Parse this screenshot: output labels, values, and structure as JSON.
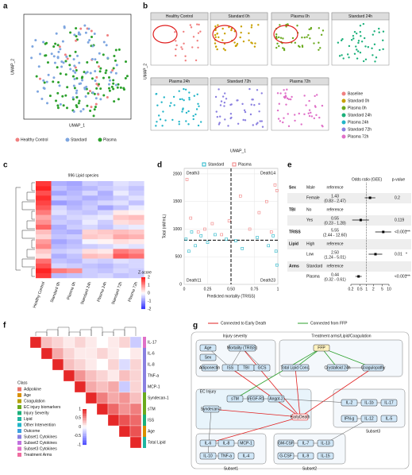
{
  "a": {
    "label": "a",
    "x_label": "UMAP_1",
    "y_label": "UMAP_2",
    "legend": [
      {
        "name": "Healthy Control",
        "color": "#f08080"
      },
      {
        "name": "Standard",
        "color": "#7ea6e0"
      },
      {
        "name": "Plasma",
        "color": "#2ca02c"
      }
    ]
  },
  "b": {
    "label": "b",
    "x_label": "UMAP_1",
    "y_label": "UMAP_2",
    "panels": [
      "Healthy Control",
      "Standard 0h",
      "Plasma 0h",
      "Standard 24h",
      "Plasma 24h",
      "Standard 72h",
      "Plasma 72h"
    ],
    "legend": [
      {
        "name": "Baseline",
        "color": "#f08080"
      },
      {
        "name": "Standard 0h",
        "color": "#c8a000"
      },
      {
        "name": "Plasma 0h",
        "color": "#6aaa1e"
      },
      {
        "name": "Standard 24h",
        "color": "#1ab07a"
      },
      {
        "name": "Plasma 24h",
        "color": "#22b5c8"
      },
      {
        "name": "Standard 72h",
        "color": "#8a7fe0"
      },
      {
        "name": "Plasma 72h",
        "color": "#e070c8"
      }
    ]
  },
  "c": {
    "label": "c",
    "title": "996 Lipid species",
    "columns": [
      "Healthy Control",
      "Standard 0h",
      "Plasma 0h",
      "Standard 24h",
      "Plasma 24h",
      "Standard 72h",
      "Plasma 72h"
    ],
    "values": [
      [
        1.8,
        -0.8,
        -0.9,
        -0.5,
        -0.6,
        -0.3,
        -0.4
      ],
      [
        2.0,
        -0.6,
        -0.8,
        -0.7,
        -0.5,
        -0.4,
        -0.6
      ],
      [
        1.6,
        -0.9,
        -0.7,
        -0.4,
        -0.8,
        -0.2,
        -0.5
      ],
      [
        1.9,
        -0.5,
        -0.6,
        -0.8,
        -0.7,
        -0.5,
        -0.3
      ],
      [
        1.7,
        -1.0,
        -0.8,
        -0.6,
        -0.4,
        -0.3,
        -0.6
      ],
      [
        1.5,
        -0.4,
        -0.7,
        -0.5,
        -0.9,
        -0.6,
        -0.2
      ],
      [
        1.2,
        -0.3,
        -0.5,
        -0.6,
        -0.4,
        0.2,
        0.1
      ],
      [
        0.8,
        -0.6,
        -0.4,
        -0.3,
        -0.2,
        0.5,
        0.6
      ],
      [
        1.0,
        -0.5,
        -0.6,
        -0.2,
        -0.5,
        0.3,
        0.4
      ],
      [
        1.4,
        -0.8,
        -0.5,
        -0.4,
        -0.6,
        -0.3,
        -0.2
      ],
      [
        0.6,
        -0.7,
        -0.8,
        0.4,
        0.5,
        0.6,
        0.5
      ],
      [
        0.4,
        -0.6,
        -0.5,
        0.5,
        0.4,
        0.8,
        0.7
      ],
      [
        0.9,
        -0.9,
        -0.7,
        -0.1,
        0.1,
        0.3,
        0.2
      ],
      [
        1.1,
        -0.7,
        -0.6,
        -0.5,
        -0.4,
        -0.2,
        -0.3
      ],
      [
        0.5,
        -0.5,
        -0.4,
        0.3,
        0.2,
        1.2,
        1.0
      ],
      [
        0.3,
        -0.8,
        -0.6,
        0.6,
        0.5,
        1.5,
        1.3
      ],
      [
        1.3,
        -0.6,
        -0.7,
        -0.4,
        -0.5,
        -0.3,
        -0.4
      ],
      [
        1.6,
        -0.4,
        -0.5,
        -0.6,
        -0.7,
        -0.5,
        -0.4
      ],
      [
        2.0,
        1.2,
        1.0,
        -0.5,
        -0.6,
        -0.4,
        -0.5
      ],
      [
        1.8,
        -0.7,
        -0.6,
        -0.5,
        -0.4,
        -0.6,
        -0.5
      ]
    ],
    "legend_title": "Z-score",
    "legend_ticks": [
      2,
      1,
      0,
      -1,
      -2
    ]
  },
  "d": {
    "label": "d",
    "type": "scatter",
    "x_label": "Predicted mortality (TRISS)",
    "y_label": "Total (nM/mL)",
    "series": [
      {
        "name": "Standard",
        "color": "#22b5c8",
        "x": [
          0.02,
          0.05,
          0.08,
          0.12,
          0.18,
          0.25,
          0.33,
          0.45,
          0.55,
          0.62,
          0.78,
          0.9,
          0.95,
          0.98,
          0.99
        ],
        "y": [
          820,
          600,
          950,
          700,
          880,
          760,
          900,
          820,
          790,
          650,
          850,
          700,
          880,
          600,
          350
        ]
      },
      {
        "name": "Plasma",
        "color": "#f08080",
        "x": [
          0.03,
          0.07,
          0.15,
          0.22,
          0.3,
          0.4,
          0.48,
          0.6,
          0.7,
          0.8,
          0.88,
          0.93,
          0.97,
          0.99
        ],
        "y": [
          1900,
          1200,
          950,
          1000,
          1100,
          900,
          1150,
          1600,
          1000,
          1300,
          1500,
          950,
          1800,
          1700
        ]
      }
    ],
    "xlim": [
      0,
      1
    ],
    "ylim": [
      0,
      2100
    ],
    "xticks": [
      0,
      0.25,
      {
        "value": 0.5,
        "label": "0.50"
      },
      0.75,
      1
    ],
    "yticks": [
      0,
      500,
      1000,
      1500,
      2000
    ],
    "reference_lines": {
      "x": 0.5,
      "y": 800
    },
    "annotations": [
      "Death3",
      "Death14",
      "Death11",
      "Death23"
    ]
  },
  "e": {
    "label": "e",
    "header": "Odds ratio (GEE)",
    "p_header": "p-value",
    "xlim": [
      0.2,
      10
    ],
    "xticks": [
      0.2,
      0.5,
      1,
      2,
      5,
      10
    ],
    "rows": [
      {
        "group": "Sex",
        "level": "Male",
        "estimate": "reference"
      },
      {
        "level": "Female",
        "or": 1.43,
        "ci": "(0.83 - 2.47)",
        "lo": 0.83,
        "hi": 2.47,
        "p": "0.2"
      },
      {
        "group": "TBI",
        "level": "No",
        "estimate": "reference"
      },
      {
        "level": "Yes",
        "or": 0.55,
        "ci": "(0.23 - 1.28)",
        "lo": 0.23,
        "hi": 1.28,
        "p": "0.119"
      },
      {
        "group": "TRISS",
        "or": 5.55,
        "ci": "(2.44 - 12.60)",
        "lo": 2.44,
        "hi": 12.6,
        "p": "<0.001",
        "sig": "***"
      },
      {
        "group": "Lipid",
        "level": "High",
        "estimate": "reference"
      },
      {
        "level": "Low",
        "or": 2.5,
        "or_label": "2.50",
        "ci": "(1.24 - 5.01)",
        "lo": 1.24,
        "hi": 5.01,
        "p": "0.01",
        "sig": "*"
      },
      {
        "group": "Arms",
        "level": "Standard",
        "estimate": "reference"
      },
      {
        "level": "Plasma",
        "or": 0.44,
        "ci": "(0.32 - 0.61)",
        "lo": 0.32,
        "hi": 0.61,
        "p": "<0.001",
        "sig": "***"
      }
    ]
  },
  "f": {
    "label": "f",
    "legend_title": "Class",
    "classes": [
      {
        "name": "Adipokine",
        "color": "#e8736c"
      },
      {
        "name": "Age",
        "color": "#d89000"
      },
      {
        "name": "Coagulation",
        "color": "#b5a000"
      },
      {
        "name": "EC injury biomarkers",
        "color": "#6aaa1e"
      },
      {
        "name": "Injury Severity",
        "color": "#1ab07a"
      },
      {
        "name": "Lipid",
        "color": "#1fb5a0"
      },
      {
        "name": "Other Intervention",
        "color": "#22b5c8"
      },
      {
        "name": "Outcome",
        "color": "#3ca0e0"
      },
      {
        "name": "Subset1 Cytokines",
        "color": "#8a7fe0"
      },
      {
        "name": "Subset2 Cytokines",
        "color": "#c070e0"
      },
      {
        "name": "Subset3 Cytokines",
        "color": "#e070c8"
      },
      {
        "name": "Treatment Arms",
        "color": "#f06ca0"
      }
    ],
    "variables": [
      "IL-17",
      "IL-6",
      "IL-8",
      "TNF-a",
      "MCP-1",
      "Syndecan-1",
      "sTM",
      "ISS",
      "Age",
      "Total Lipid"
    ],
    "variable_class": [
      10,
      8,
      8,
      8,
      8,
      3,
      3,
      4,
      1,
      5
    ],
    "correlation": [
      [
        1,
        0.3,
        0.2,
        0.1,
        0.2,
        0.1,
        0,
        0.1,
        0.2,
        -0.3
      ],
      [
        1,
        0.4,
        0.2,
        0.1,
        0.1,
        0.2,
        0.1,
        0,
        0.1
      ],
      [
        1,
        0.3,
        0.2,
        0.1,
        0,
        0.2,
        -0.2,
        0.2
      ],
      [
        1,
        0.5,
        0.3,
        0.2,
        0.1,
        0.3,
        0.2
      ],
      [
        1,
        0.4,
        0.3,
        0.4,
        -0.3,
        0.2
      ],
      [
        1,
        0.6,
        0.4,
        0.5,
        0.3
      ],
      [
        1,
        0.7,
        0.5,
        0.6
      ],
      [
        1,
        0.8,
        0.7
      ],
      [
        1,
        0.8
      ],
      [
        1
      ]
    ],
    "colorbar_ticks": [
      1,
      0.5,
      0,
      -0.5,
      -1
    ]
  },
  "g": {
    "label": "g",
    "legend": [
      "Connected to Early Death",
      "Connected from FFP"
    ],
    "groups": [
      "Injury severity",
      "Treatment arms/Lipid/Coagulation",
      "EC Injury",
      "Subset3",
      "Subset1",
      "Subset2"
    ],
    "nodes": [
      "Age",
      "Sex",
      "Adiponectin",
      "Mortality (TRISS)",
      "ISS",
      "TBI",
      "GCS",
      "Total Lipid Conc.",
      "FFP",
      "Crystalloid 24h",
      "Coagulopathy",
      "Syndecan-1",
      "sTM",
      "VEGF-R1",
      "Angpt-2",
      "EarlyDeath",
      "IL-2",
      "IL-1b",
      "IL-17",
      "IFN-g",
      "IL-12",
      "IL-5",
      "IL-6",
      "IL-8",
      "MCP-1",
      "IL-10",
      "TNF-a",
      "IL-4",
      "GM-CSF",
      "IL-7",
      "IL-13",
      "G-CSF",
      "IL-9",
      "IL-15"
    ]
  }
}
